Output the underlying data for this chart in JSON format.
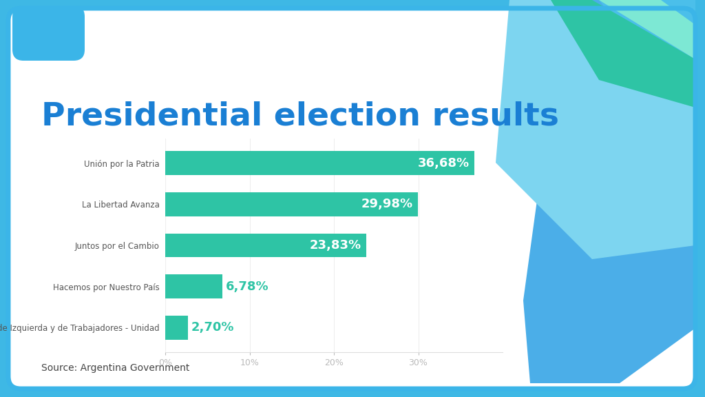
{
  "title": "Presidential election results",
  "title_color": "#1A7FD4",
  "title_fontsize": 34,
  "categories": [
    "Unión por la Patria",
    "La Libertad Avanza",
    "Juntos por el Cambio",
    "Hacemos por Nuestro País",
    "Frente de Izquierda y de Trabajadores - Unidad"
  ],
  "values": [
    36.68,
    29.98,
    23.83,
    6.78,
    2.7
  ],
  "labels": [
    "36,68%",
    "29,98%",
    "23,83%",
    "6,78%",
    "2,70%"
  ],
  "bar_color": "#2EC4A5",
  "label_inside_color": "#FFFFFF",
  "label_outside_color": "#2EC4A5",
  "label_fontsize": 13,
  "category_fontsize": 8.5,
  "category_color": "#555555",
  "xlim": [
    0,
    40
  ],
  "xtick_labels": [
    "0%",
    "10%",
    "20%",
    "30%"
  ],
  "xtick_values": [
    0,
    10,
    20,
    30
  ],
  "source_text": "Source: Argentina Government",
  "source_fontsize": 10,
  "source_color": "#444444",
  "bg_color": "#FFFFFF",
  "outer_bg_color": "#3EB8E5",
  "bar_height": 0.58,
  "deco_shape1_color": "#3BB5E8",
  "deco_shape2_color": "#5BC8E8",
  "deco_shape3_color": "#2EC4A5",
  "deco_shape4_color": "#7DD8F0"
}
